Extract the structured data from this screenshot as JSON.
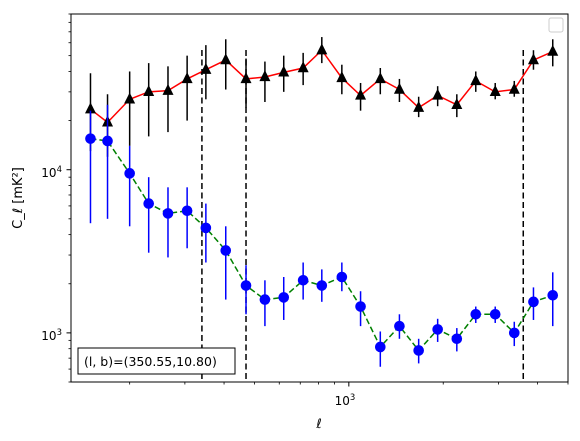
{
  "chart_data": {
    "type": "scatter",
    "x_scale": "log",
    "y_scale": "log",
    "xlim": [
      130,
      5000
    ],
    "ylim": [
      500,
      90000
    ],
    "xlabel": "ℓ",
    "ylabel": "C_ℓ  [mK²]",
    "x_ticks": [
      {
        "value": 1000,
        "base": "10",
        "exp": "3"
      }
    ],
    "y_ticks": [
      {
        "value": 1000,
        "base": "10",
        "exp": "3"
      },
      {
        "value": 10000,
        "base": "10",
        "exp": "4"
      }
    ],
    "vlines": [
      340,
      470,
      3600
    ],
    "annotation": "(l, b)=(350.55,10.80)",
    "legend": {
      "placement": "top-right",
      "entries": []
    },
    "colors": {
      "series_black_line": "#ff0000",
      "series_black_marker": "#000000",
      "series_blue_line": "#008000",
      "series_blue_marker": "#0000ff"
    },
    "series": [
      {
        "marker": "triangle",
        "line_style": "solid",
        "x": [
          150,
          170,
          200,
          230,
          265,
          305,
          350,
          405,
          470,
          540,
          620,
          715,
          820,
          950,
          1090,
          1260,
          1450,
          1670,
          1920,
          2210,
          2540,
          2930,
          3370,
          3880,
          4470
        ],
        "y": [
          23500,
          19500,
          27000,
          30000,
          30500,
          36000,
          41000,
          47000,
          36000,
          37000,
          39500,
          42000,
          54000,
          36500,
          28500,
          36000,
          31000,
          24000,
          28500,
          25000,
          35000,
          30000,
          31000,
          47000,
          53000
        ],
        "y_lo": [
          13000,
          12000,
          14000,
          16000,
          17000,
          20000,
          27000,
          31000,
          24000,
          26000,
          30000,
          33000,
          45000,
          29000,
          23000,
          29000,
          26000,
          21000,
          24500,
          21000,
          30000,
          27000,
          28000,
          41000,
          43000
        ],
        "y_hi": [
          39000,
          29000,
          40000,
          45000,
          43000,
          50000,
          58000,
          63000,
          48000,
          46000,
          50000,
          52000,
          65000,
          44000,
          34000,
          42000,
          36000,
          28000,
          32500,
          29000,
          40000,
          34000,
          35000,
          54000,
          63000
        ]
      },
      {
        "marker": "circle",
        "line_style": "dashed",
        "x": [
          150,
          170,
          200,
          230,
          265,
          305,
          350,
          405,
          470,
          540,
          620,
          715,
          820,
          950,
          1090,
          1260,
          1450,
          1670,
          1920,
          2210,
          2540,
          2930,
          3370,
          3880,
          4470
        ],
        "y": [
          15500,
          15000,
          9500,
          6200,
          5400,
          5600,
          4400,
          3200,
          1950,
          1600,
          1650,
          2100,
          1950,
          2200,
          1450,
          820,
          1100,
          780,
          1050,
          920,
          1300,
          1300,
          1000,
          1550,
          1700
        ],
        "y_lo": [
          4700,
          5000,
          4500,
          3100,
          2900,
          3300,
          2700,
          1600,
          1300,
          1100,
          1200,
          1600,
          1550,
          1800,
          1100,
          620,
          920,
          650,
          880,
          770,
          1150,
          1150,
          830,
          1200,
          1100
        ],
        "y_hi": [
          23000,
          25000,
          14000,
          9000,
          7800,
          7800,
          6200,
          4500,
          2600,
          2100,
          2200,
          2700,
          2450,
          2700,
          1800,
          1020,
          1300,
          920,
          1220,
          1070,
          1450,
          1450,
          1170,
          1900,
          2350
        ]
      }
    ]
  }
}
